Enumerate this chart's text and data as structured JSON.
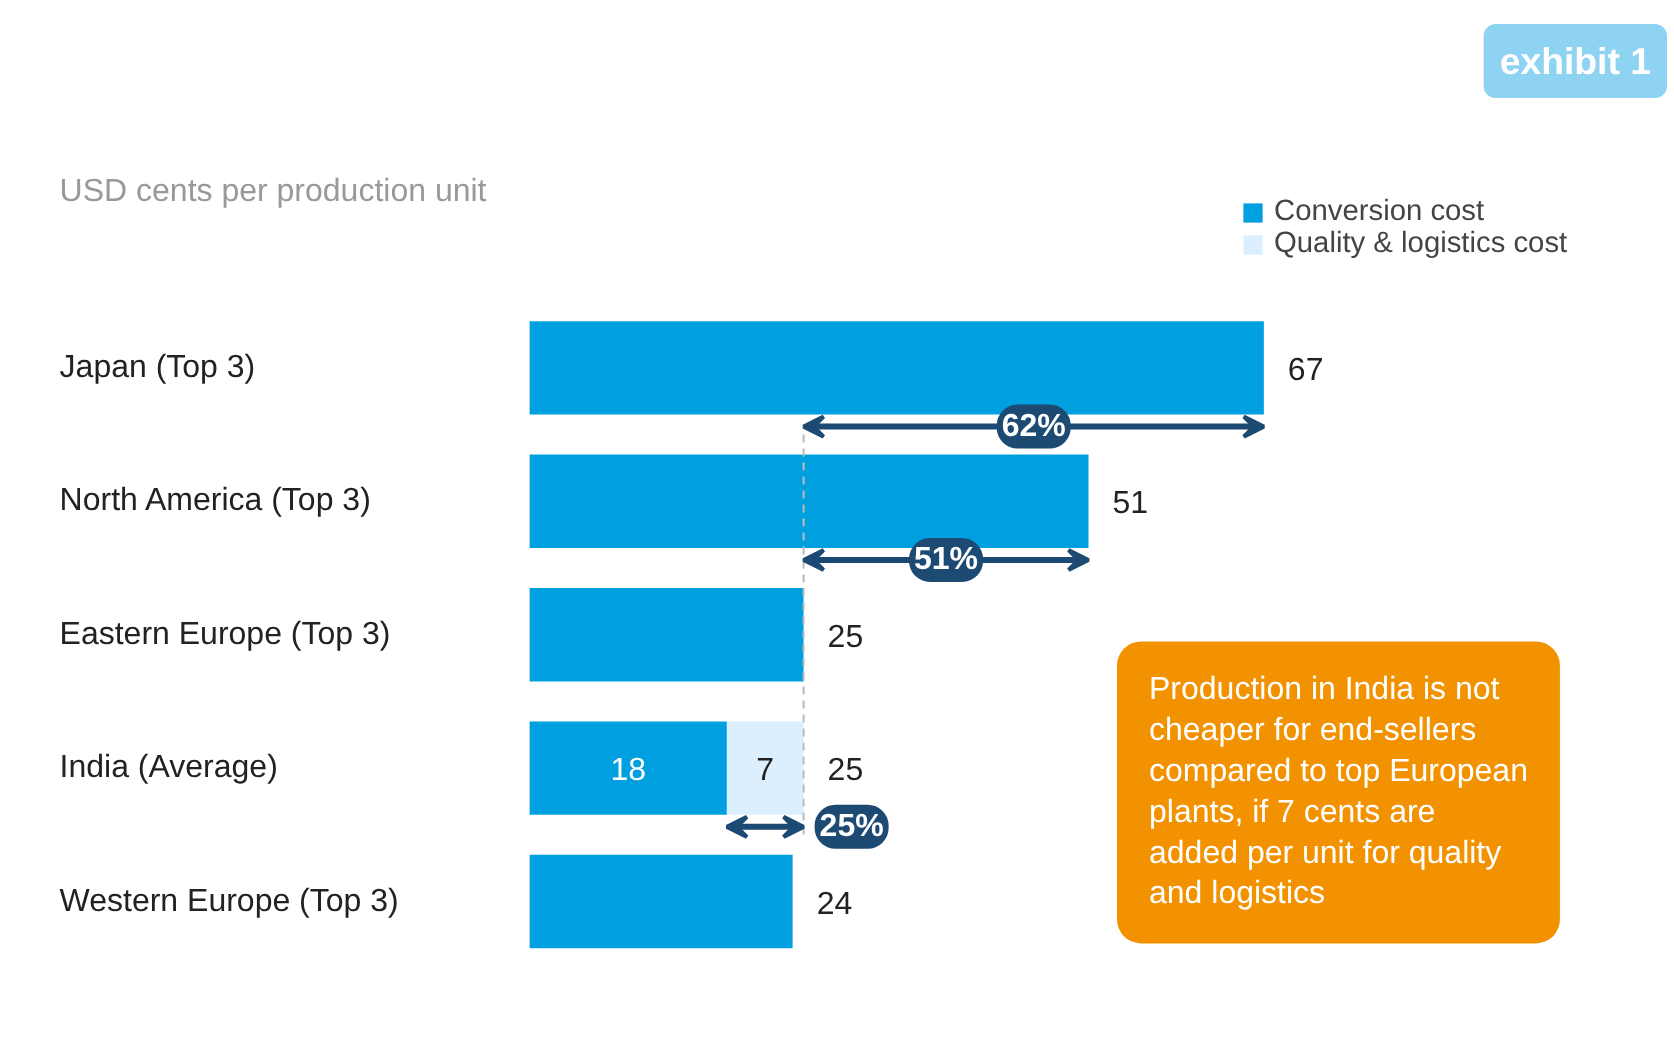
{
  "chart_data": {
    "type": "bar",
    "orientation": "horizontal",
    "stacked": true,
    "title": "USD cents per production unit",
    "categories": [
      "Japan (Top 3)",
      "North America (Top 3)",
      "Eastern Europe (Top 3)",
      "India (Average)",
      "Western Europe (Top 3)"
    ],
    "series": [
      {
        "name": "Conversion cost",
        "color": "#009fdf",
        "values": [
          67,
          51,
          25,
          18,
          24
        ],
        "value_labels": [
          null,
          null,
          null,
          "18",
          null
        ]
      },
      {
        "name": "Quality & logistics cost",
        "color": "#dcefff",
        "values": [
          null,
          null,
          null,
          7,
          null
        ],
        "value_labels": [
          null,
          null,
          null,
          "7",
          null
        ]
      }
    ],
    "totals": [
      "67",
      "51",
      "25",
      "25",
      "24"
    ],
    "ref_lines": [
      {
        "axis": "x",
        "value": 25,
        "color": "#bbbbbb",
        "line_style": "dashed"
      }
    ],
    "annotations": [
      "exhibit 1",
      "62%",
      "51%",
      "25%",
      "Production in India is not cheaper for end-sellers compared to top European plants, if 7 cents are added per unit for quality and logistics"
    ],
    "legend": "top right",
    "grid": false
  }
}
